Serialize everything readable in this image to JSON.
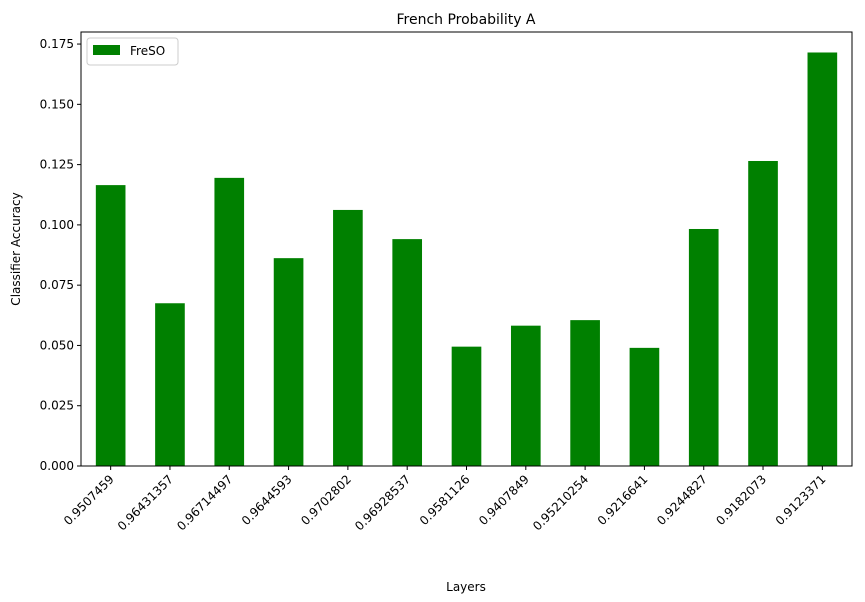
{
  "chart_data": {
    "type": "bar",
    "title": "French Probability A",
    "xlabel": "Layers",
    "ylabel": "Classifier Accuracy",
    "categories": [
      "0.9507459",
      "0.96431357",
      "0.96714497",
      "0.9644593",
      "0.9702802",
      "0.96928537",
      "0.9581126",
      "0.9407849",
      "0.95210254",
      "0.9216641",
      "0.9244827",
      "0.9182073",
      "0.9123371"
    ],
    "series": [
      {
        "name": "FreSO",
        "color": "#008000",
        "values": [
          0.1165,
          0.0675,
          0.1195,
          0.0862,
          0.1062,
          0.0941,
          0.0495,
          0.0582,
          0.0605,
          0.049,
          0.0983,
          0.1265,
          0.1715
        ]
      }
    ],
    "ylim": [
      0,
      0.18
    ],
    "yticks": [
      "0.000",
      "0.025",
      "0.050",
      "0.075",
      "0.100",
      "0.125",
      "0.150",
      "0.175"
    ],
    "grid": false,
    "legend_position": "top-left",
    "xtick_rotation": "45"
  }
}
